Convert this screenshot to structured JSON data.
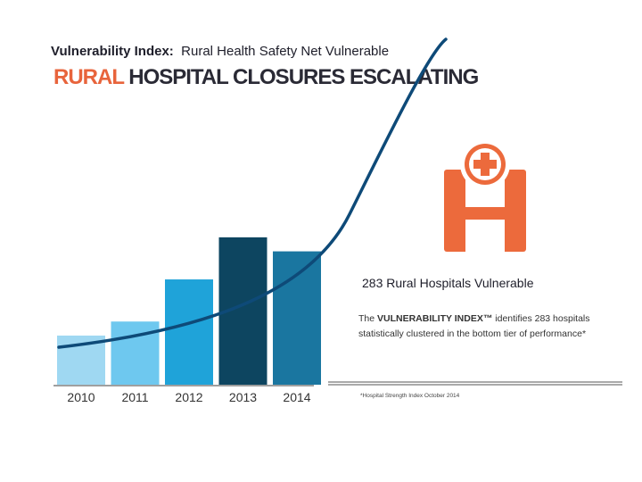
{
  "header": {
    "index_label": "Vulnerability Index:",
    "subtitle": "Rural Health Safety Net Vulnerable",
    "headline_accent": "RURAL",
    "headline_rest": "HOSPITAL CLOSURES ESCALATING"
  },
  "chart_data": {
    "type": "bar",
    "title": "RURAL HOSPITAL CLOSURES ESCALATING",
    "xlabel": "",
    "ylabel": "",
    "categories": [
      "2010",
      "2011",
      "2012",
      "2013",
      "2014"
    ],
    "values": [
      3.5,
      4.5,
      7.5,
      10.5,
      9.5
    ],
    "ylim": [
      0,
      11
    ],
    "grid": false,
    "bar_colors": [
      "#9fd8f2",
      "#6ec8ef",
      "#1fa3d9",
      "#0d4560",
      "#1a76a0"
    ],
    "trend_color": "#0e4a78",
    "axis_color": "#666666"
  },
  "callout": {
    "icon": "hospital-icon",
    "icon_color": "#ec6a3c",
    "title": "283 Rural Hospitals Vulnerable",
    "desc_prefix": "The",
    "desc_brand": "VULNERABILITY INDEX™",
    "desc_rest": "identifies 283 hospitals statistically clustered in the bottom tier of performance*",
    "footnote": "*Hospital Strength Index October 2014"
  }
}
